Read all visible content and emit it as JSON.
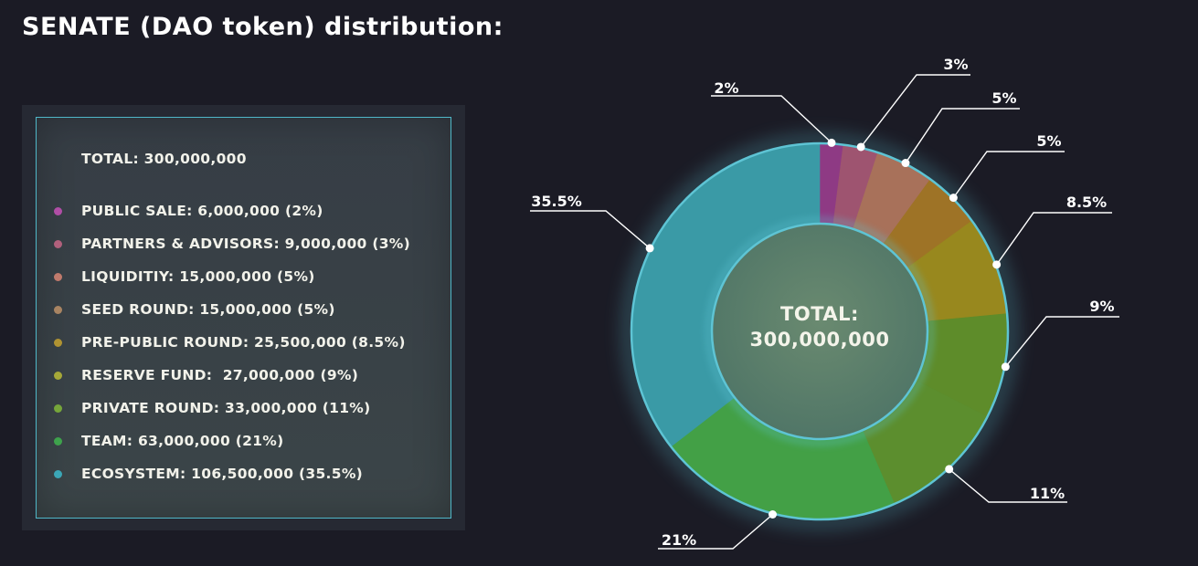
{
  "title": "SENATE (DAO token) distribution:",
  "legend": {
    "total": "TOTAL: 300,000,000",
    "items": [
      {
        "label": "PUBLIC SALE: 6,000,000 (2%)",
        "color": "#b04ea6"
      },
      {
        "label": "PARTNERS & ADVISORS: 9,000,000 (3%)",
        "color": "#b0607c"
      },
      {
        "label": "LIQUIDITIY: 15,000,000 (5%)",
        "color": "#c07a6c"
      },
      {
        "label": "SEED ROUND: 15,000,000 (5%)",
        "color": "#a88462"
      },
      {
        "label": "PRE-PUBLIC ROUND: 25,500,000 (8.5%)",
        "color": "#b09332"
      },
      {
        "label": "RESERVE FUND:  27,000,000 (9%)",
        "color": "#a6a838"
      },
      {
        "label": "PRIVATE ROUND: 33,000,000 (11%)",
        "color": "#76a63a"
      },
      {
        "label": "TEAM: 63,000,000 (21%)",
        "color": "#3ea24c"
      },
      {
        "label": "ECOSYSTEM: 106,500,000 (35.5%)",
        "color": "#3ba6b6"
      }
    ]
  },
  "chart_data": {
    "type": "pie",
    "variant": "donut",
    "center_label": [
      "TOTAL:",
      "300,000,000"
    ],
    "categories": [
      "PUBLIC SALE",
      "PARTNERS & ADVISORS",
      "LIQUIDITIY",
      "SEED ROUND",
      "PRE-PUBLIC ROUND",
      "RESERVE FUND",
      "PRIVATE ROUND",
      "TEAM",
      "ECOSYSTEM"
    ],
    "values": [
      6000000,
      9000000,
      15000000,
      15000000,
      25500000,
      27000000,
      33000000,
      63000000,
      106500000
    ],
    "percent_labels": [
      "2%",
      "3%",
      "5%",
      "5%",
      "8.5%",
      "9%",
      "11%",
      "21%",
      "35.5%"
    ],
    "colors": [
      "#8e3a84",
      "#9e5470",
      "#a8715a",
      "#9e7326",
      "#98881e",
      "#5e8c2a",
      "#5c8e2e",
      "#43a046",
      "#3a9aa6"
    ],
    "ring_color": "#5ec4d4"
  }
}
